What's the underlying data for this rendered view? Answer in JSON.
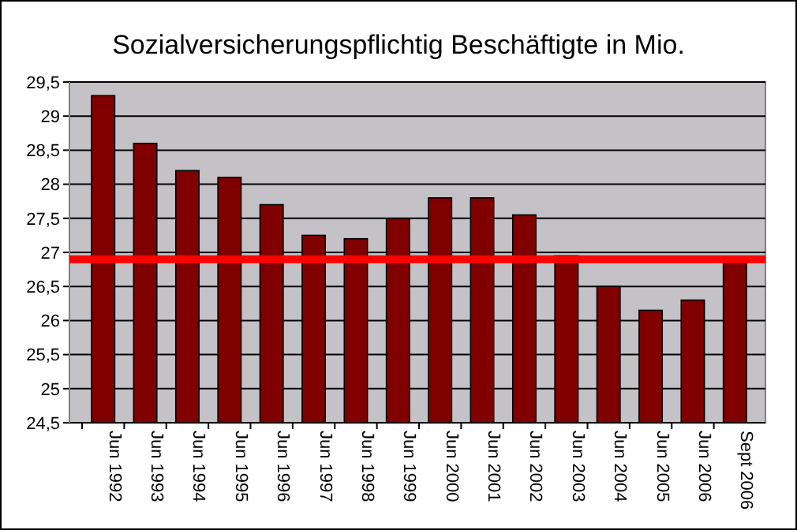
{
  "chart_data": {
    "type": "bar",
    "title": "Sozialversicherungspflichtig Beschäftigte in Mio.",
    "categories": [
      "Jun 1992",
      "Jun 1993",
      "Jun 1994",
      "Jun 1995",
      "Jun 1996",
      "Jun 1997",
      "Jun 1998",
      "Jun 1999",
      "Jun 2000",
      "Jun 2001",
      "Jun 2002",
      "Jun 2003",
      "Jun 2004",
      "Jun 2005",
      "Jun 2006",
      "Sept 2006"
    ],
    "values": [
      29.3,
      28.6,
      28.2,
      28.1,
      27.7,
      27.25,
      27.2,
      27.5,
      27.8,
      27.8,
      27.55,
      26.95,
      26.5,
      26.15,
      26.3,
      26.85
    ],
    "color": "#800000",
    "ylim": [
      24.5,
      29.5
    ],
    "yticks": [
      {
        "value": 24.5,
        "label": "24,5"
      },
      {
        "value": 25,
        "label": "25"
      },
      {
        "value": 25.5,
        "label": "25,5"
      },
      {
        "value": 26,
        "label": "26"
      },
      {
        "value": 26.5,
        "label": "26,5"
      },
      {
        "value": 27,
        "label": "27"
      },
      {
        "value": 27.5,
        "label": "27,5"
      },
      {
        "value": 28,
        "label": "28"
      },
      {
        "value": 28.5,
        "label": "28,5"
      },
      {
        "value": 29,
        "label": "29"
      },
      {
        "value": 29.5,
        "label": "29,5"
      }
    ],
    "grid": "y",
    "ref_lines": [
      {
        "axis": "y",
        "value": 26.9,
        "color": "#ff0000"
      }
    ]
  }
}
